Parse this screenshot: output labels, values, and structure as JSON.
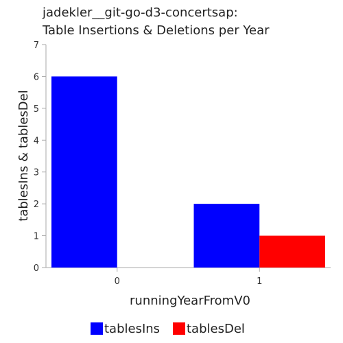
{
  "chart_data": {
    "type": "bar",
    "title": [
      "jadekler__git-go-d3-concertsap:",
      "Table Insertions & Deletions per Year"
    ],
    "xlabel": "runningYearFromV0",
    "ylabel": "tablesIns & tablesDel",
    "categories": [
      "0",
      "1"
    ],
    "ylim": [
      0,
      7
    ],
    "yticks": [
      0,
      1,
      2,
      3,
      4,
      5,
      6,
      7
    ],
    "series": [
      {
        "name": "tablesIns",
        "color": "#0000ff",
        "values": [
          6,
          2
        ]
      },
      {
        "name": "tablesDel",
        "color": "#ff0000",
        "values": [
          0,
          1
        ]
      }
    ],
    "legend_position": "bottom",
    "grid": false
  }
}
